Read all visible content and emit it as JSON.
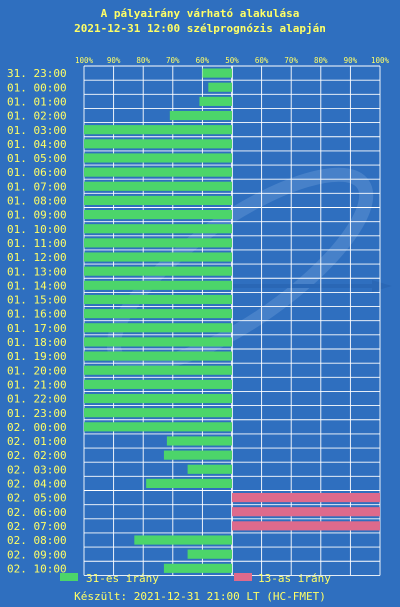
{
  "title": "A pályairány várható alakulása",
  "subtitle": "2021-12-31 12:00 szélprognózis alapján",
  "legend": {
    "left_label": "31-es irány",
    "right_label": "13-as irány",
    "left_color": "#4cd56a",
    "right_color": "#de6a8c"
  },
  "footer": "Készült: 2021-12-31 21:00 LT (HC-FMET)",
  "chart_data": {
    "type": "bar",
    "orientation": "horizontal-diverging",
    "tick_labels": [
      "100%",
      "90%",
      "80%",
      "70%",
      "60%",
      "50%",
      "60%",
      "70%",
      "80%",
      "90%",
      "100%"
    ],
    "categories": [
      "31. 23:00",
      "01. 00:00",
      "01. 01:00",
      "01. 02:00",
      "01. 03:00",
      "01. 04:00",
      "01. 05:00",
      "01. 06:00",
      "01. 07:00",
      "01. 08:00",
      "01. 09:00",
      "01. 10:00",
      "01. 11:00",
      "01. 12:00",
      "01. 13:00",
      "01. 14:00",
      "01. 15:00",
      "01. 16:00",
      "01. 17:00",
      "01. 18:00",
      "01. 19:00",
      "01. 20:00",
      "01. 21:00",
      "01. 22:00",
      "01. 23:00",
      "02. 00:00",
      "02. 01:00",
      "02. 02:00",
      "02. 03:00",
      "02. 04:00",
      "02. 05:00",
      "02. 06:00",
      "02. 07:00",
      "02. 08:00",
      "02. 09:00",
      "02. 10:00"
    ],
    "series": [
      {
        "name": "31-es irány",
        "color": "#4cd56a",
        "values": [
          60,
          58,
          61,
          71,
          100,
          100,
          100,
          100,
          100,
          100,
          100,
          100,
          100,
          100,
          100,
          100,
          100,
          100,
          100,
          100,
          100,
          100,
          100,
          100,
          100,
          100,
          72,
          73,
          65,
          79,
          0,
          0,
          0,
          83,
          65,
          73
        ]
      },
      {
        "name": "13-as irány",
        "color": "#de6a8c",
        "values": [
          0,
          0,
          0,
          0,
          0,
          0,
          0,
          0,
          0,
          0,
          0,
          0,
          0,
          0,
          0,
          0,
          0,
          0,
          0,
          0,
          0,
          0,
          0,
          0,
          0,
          0,
          0,
          0,
          0,
          0,
          100,
          100,
          100,
          0,
          0,
          0
        ]
      }
    ],
    "xlim": [
      50,
      100
    ],
    "grid": true,
    "legend_position": "bottom"
  }
}
